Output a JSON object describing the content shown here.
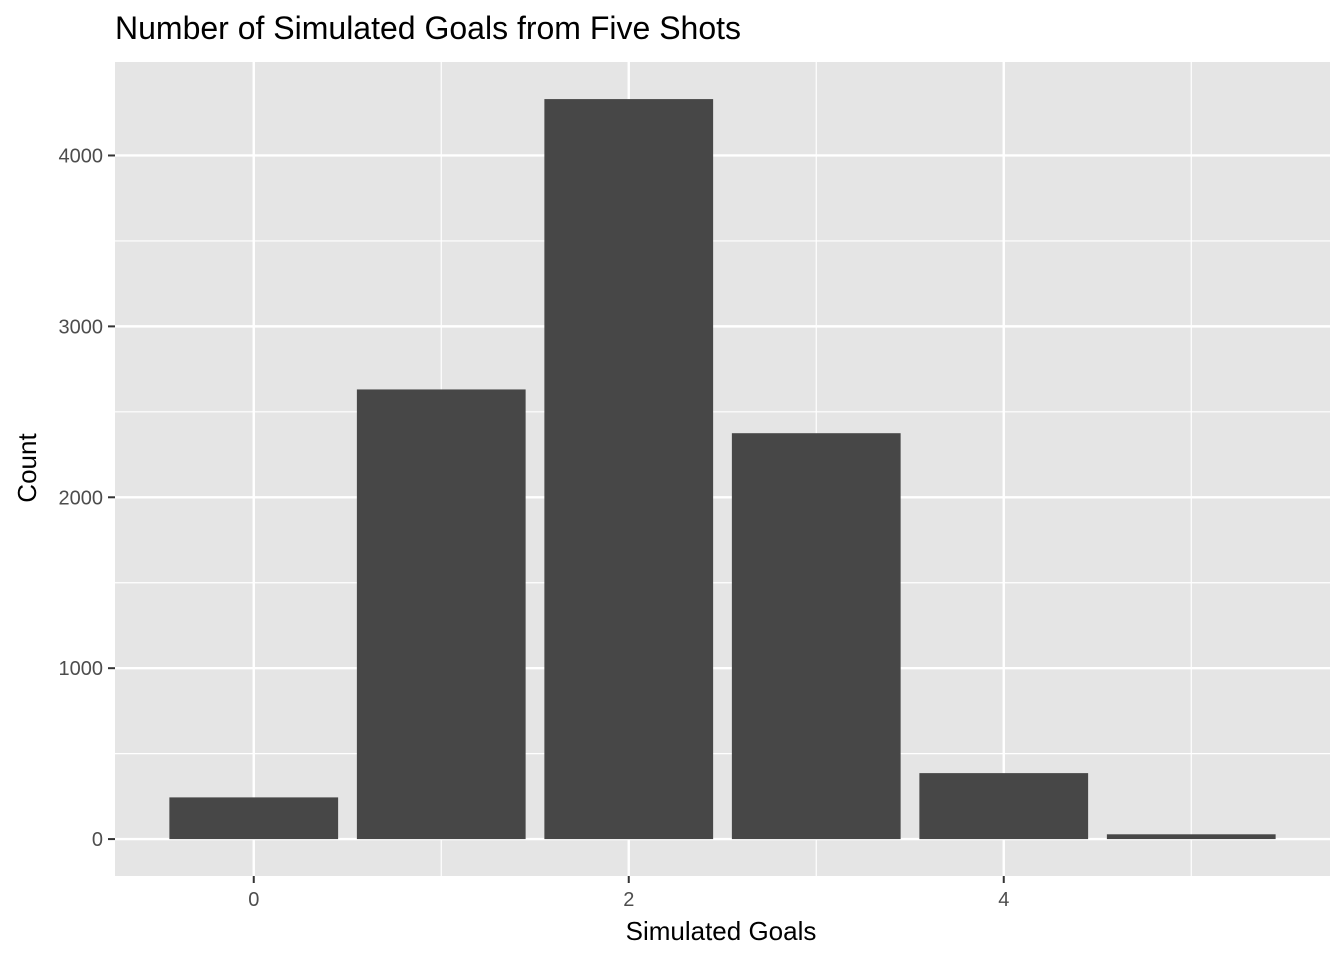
{
  "chart_data": {
    "type": "bar",
    "title": "Number of Simulated Goals from Five Shots",
    "xlabel": "Simulated Goals",
    "ylabel": "Count",
    "x": [
      0,
      1,
      2,
      3,
      4,
      5
    ],
    "values": [
      244,
      2631,
      4330,
      2375,
      386,
      28
    ],
    "xlim": [
      -0.74,
      5.74
    ],
    "ylim": [
      -216,
      4547
    ],
    "x_ticks": [
      0,
      2,
      4
    ],
    "y_ticks": [
      0,
      1000,
      2000,
      3000,
      4000
    ],
    "x_tick_labels": [
      "0",
      "2",
      "4"
    ],
    "y_tick_labels": [
      "0",
      "1000",
      "2000",
      "3000",
      "4000"
    ],
    "grid": true,
    "legend": "none",
    "colors": {
      "panel_background": "#e5e5e5",
      "grid_major": "#ffffff",
      "bar_fill": "#474747",
      "tick_text": "#4d4d4d"
    }
  }
}
